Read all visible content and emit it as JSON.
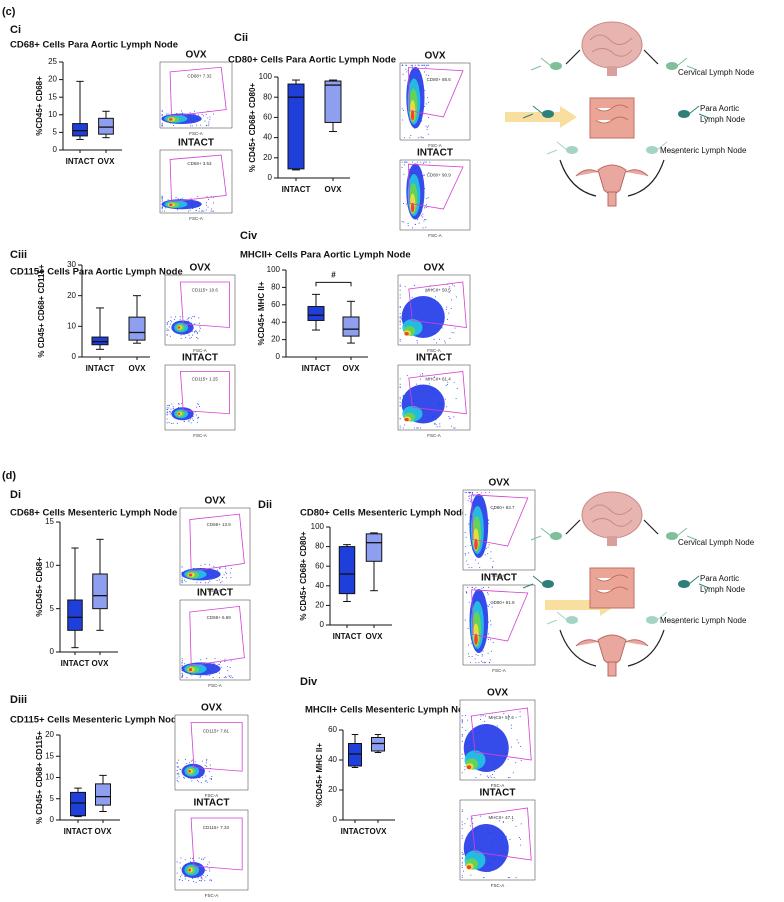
{
  "figure": {
    "panel_labels": [
      "(c)",
      "(d)"
    ]
  },
  "chart_data": [
    {
      "type": "box",
      "panel": "Ci",
      "title": "CD68+ Cells Para Aortic Lymph Node",
      "ylabel": "%CD45+ CD68+",
      "categories": [
        "INTACT",
        "OVX"
      ],
      "colors": [
        "#1f3fdb",
        "#8f9ff0"
      ],
      "boxes": [
        {
          "min": 3,
          "q1": 4,
          "median": 5.5,
          "q3": 7.5,
          "max": 19.5
        },
        {
          "min": 3.5,
          "q1": 4.5,
          "median": 6.5,
          "q3": 9,
          "max": 11
        }
      ],
      "ylim": [
        0,
        25
      ],
      "yticks": [
        0,
        5,
        10,
        15,
        20,
        25
      ]
    },
    {
      "type": "box",
      "panel": "Cii",
      "title": "CD80+ Cells Para Aortic Lymph Node",
      "ylabel": "% CD45+ CD68+ CD80+",
      "categories": [
        "INTACT",
        "OVX"
      ],
      "colors": [
        "#1f3fdb",
        "#8f9ff0"
      ],
      "boxes": [
        {
          "min": 8,
          "q1": 9,
          "median": 80,
          "q3": 93,
          "max": 97
        },
        {
          "min": 46,
          "q1": 55,
          "median": 92,
          "q3": 96,
          "max": 97
        }
      ],
      "ylim": [
        0,
        100
      ],
      "yticks": [
        0,
        20,
        40,
        60,
        80,
        100
      ]
    },
    {
      "type": "box",
      "panel": "Ciii",
      "title": "CD115+ Cells Para Aortic Lymph Node",
      "ylabel": "% CD45+ CD68+ CD115+",
      "categories": [
        "INTACT",
        "OVX"
      ],
      "colors": [
        "#1f3fdb",
        "#8f9ff0"
      ],
      "boxes": [
        {
          "min": 2.5,
          "q1": 4,
          "median": 5,
          "q3": 6.5,
          "max": 16
        },
        {
          "min": 4.5,
          "q1": 5.5,
          "median": 8,
          "q3": 13,
          "max": 20
        }
      ],
      "ylim": [
        0,
        30
      ],
      "yticks": [
        0,
        10,
        20,
        30
      ]
    },
    {
      "type": "box",
      "panel": "Civ",
      "title": "MHCII+ Cells Para Aortic Lymph Node",
      "ylabel": "%CD45+ MHC II+",
      "categories": [
        "INTACT",
        "OVX"
      ],
      "colors": [
        "#1f3fdb",
        "#8f9ff0"
      ],
      "boxes": [
        {
          "min": 31,
          "q1": 42,
          "median": 48,
          "q3": 58,
          "max": 72
        },
        {
          "min": 16,
          "q1": 24,
          "median": 32,
          "q3": 46,
          "max": 64
        }
      ],
      "ylim": [
        0,
        100
      ],
      "yticks": [
        0,
        20,
        40,
        60,
        80,
        100
      ],
      "annotation": "#"
    },
    {
      "type": "box",
      "panel": "Di",
      "title": "CD68+ Cells Mesenteric Lymph Node",
      "ylabel": "%CD45+ CD68+",
      "categories": [
        "INTACT",
        "OVX"
      ],
      "colors": [
        "#1f3fdb",
        "#8f9ff0"
      ],
      "boxes": [
        {
          "min": 0.5,
          "q1": 2.5,
          "median": 4,
          "q3": 6,
          "max": 12
        },
        {
          "min": 2.5,
          "q1": 5,
          "median": 6.5,
          "q3": 9,
          "max": 13
        }
      ],
      "ylim": [
        0,
        15
      ],
      "yticks": [
        0,
        5,
        10,
        15
      ]
    },
    {
      "type": "box",
      "panel": "Dii",
      "title": "CD80+ Cells Mesenteric Lymph Node",
      "ylabel": "% CD45+ CD68+ CD80+",
      "categories": [
        "INTACT",
        "OVX"
      ],
      "colors": [
        "#1f3fdb",
        "#8f9ff0"
      ],
      "boxes": [
        {
          "min": 24,
          "q1": 32,
          "median": 52,
          "q3": 80,
          "max": 82
        },
        {
          "min": 35,
          "q1": 65,
          "median": 84,
          "q3": 93,
          "max": 94
        }
      ],
      "ylim": [
        0,
        100
      ],
      "yticks": [
        0,
        20,
        40,
        60,
        80,
        100
      ]
    },
    {
      "type": "box",
      "panel": "Diii",
      "title": "CD115+ Cells Mesenteric Lymph Node",
      "ylabel": "% CD45+ CD68+ CD115+",
      "categories": [
        "INTACT",
        "OVX"
      ],
      "colors": [
        "#1f3fdb",
        "#8f9ff0"
      ],
      "boxes": [
        {
          "min": 0.8,
          "q1": 1,
          "median": 4,
          "q3": 6.5,
          "max": 7.5
        },
        {
          "min": 2,
          "q1": 3.5,
          "median": 5.5,
          "q3": 8.5,
          "max": 10.5
        }
      ],
      "ylim": [
        0,
        20
      ],
      "yticks": [
        0,
        5,
        10,
        15,
        20
      ]
    },
    {
      "type": "box",
      "panel": "Div",
      "title": "MHCII+ Cells Mesenteric Lymph Node",
      "ylabel": "%CD45+ MHC II+",
      "categories": [
        "INTACT",
        "OVX"
      ],
      "colors": [
        "#1f3fdb",
        "#8f9ff0"
      ],
      "boxes": [
        {
          "min": 35,
          "q1": 36,
          "median": 44,
          "q3": 51,
          "max": 57
        },
        {
          "min": 45,
          "q1": 46,
          "median": 51,
          "q3": 55,
          "max": 57
        }
      ],
      "ylim": [
        0,
        60
      ],
      "yticks": [
        0,
        20,
        40,
        60
      ]
    }
  ],
  "flow_plots": [
    [
      {
        "title": "OVX",
        "gate": "CD68+ 7.32",
        "x_label": "FSC-A"
      },
      {
        "title": "INTACT",
        "gate": "CD68+ 3.53",
        "x_label": "FSC-A"
      }
    ],
    [
      {
        "title": "OVX",
        "gate": "CD80+ 88.6",
        "x_label": "FSC-A"
      },
      {
        "title": "INTACT",
        "gate": "CD80+ 90.9",
        "x_label": "FSC-A"
      }
    ],
    [
      {
        "title": "OVX",
        "gate": "CD115+ 10.6",
        "x_label": "FSC-A"
      },
      {
        "title": "INTACT",
        "gate": "CD115+ 1.25",
        "x_label": "FSC-A"
      }
    ],
    [
      {
        "title": "OVX",
        "gate": "MHCII+ 50.5",
        "x_label": "FSC-A"
      },
      {
        "title": "INTACT",
        "gate": "MHCII+ 61.4",
        "x_label": "FSC-A"
      }
    ],
    [
      {
        "title": "OVX",
        "gate": "CD68+ 13.5",
        "x_label": "FSC-A"
      },
      {
        "title": "INTACT",
        "gate": "CD68+ 6.69",
        "x_label": "FSC-A"
      }
    ],
    [
      {
        "title": "OVX",
        "gate": "CD80+ 83.7",
        "x_label": "FSC-A"
      },
      {
        "title": "INTACT",
        "gate": "CD80+ 91.9",
        "x_label": "FSC-A"
      }
    ],
    [
      {
        "title": "OVX",
        "gate": "CD115+ 7.81",
        "x_label": "FSC-A"
      },
      {
        "title": "INTACT",
        "gate": "CD115+ 7.33",
        "x_label": "FSC-A"
      }
    ],
    [
      {
        "title": "OVX",
        "gate": "MHCII+ 57.6",
        "x_label": "FSC-A"
      },
      {
        "title": "INTACT",
        "gate": "MHCII+ 47.1",
        "x_label": "FSC-A"
      }
    ]
  ],
  "diagrams": [
    {
      "cervical": "Cervical Lymph Node",
      "para_aortic": [
        "Para Aortic",
        "Lymph Node"
      ],
      "mesenteric": "Mesenteric Lymph Node"
    },
    {
      "cervical": "Cervical Lymph Node",
      "para_aortic": [
        "Para Aortic",
        "Lymph Node"
      ],
      "mesenteric": "Mesenteric Lymph Node"
    }
  ]
}
